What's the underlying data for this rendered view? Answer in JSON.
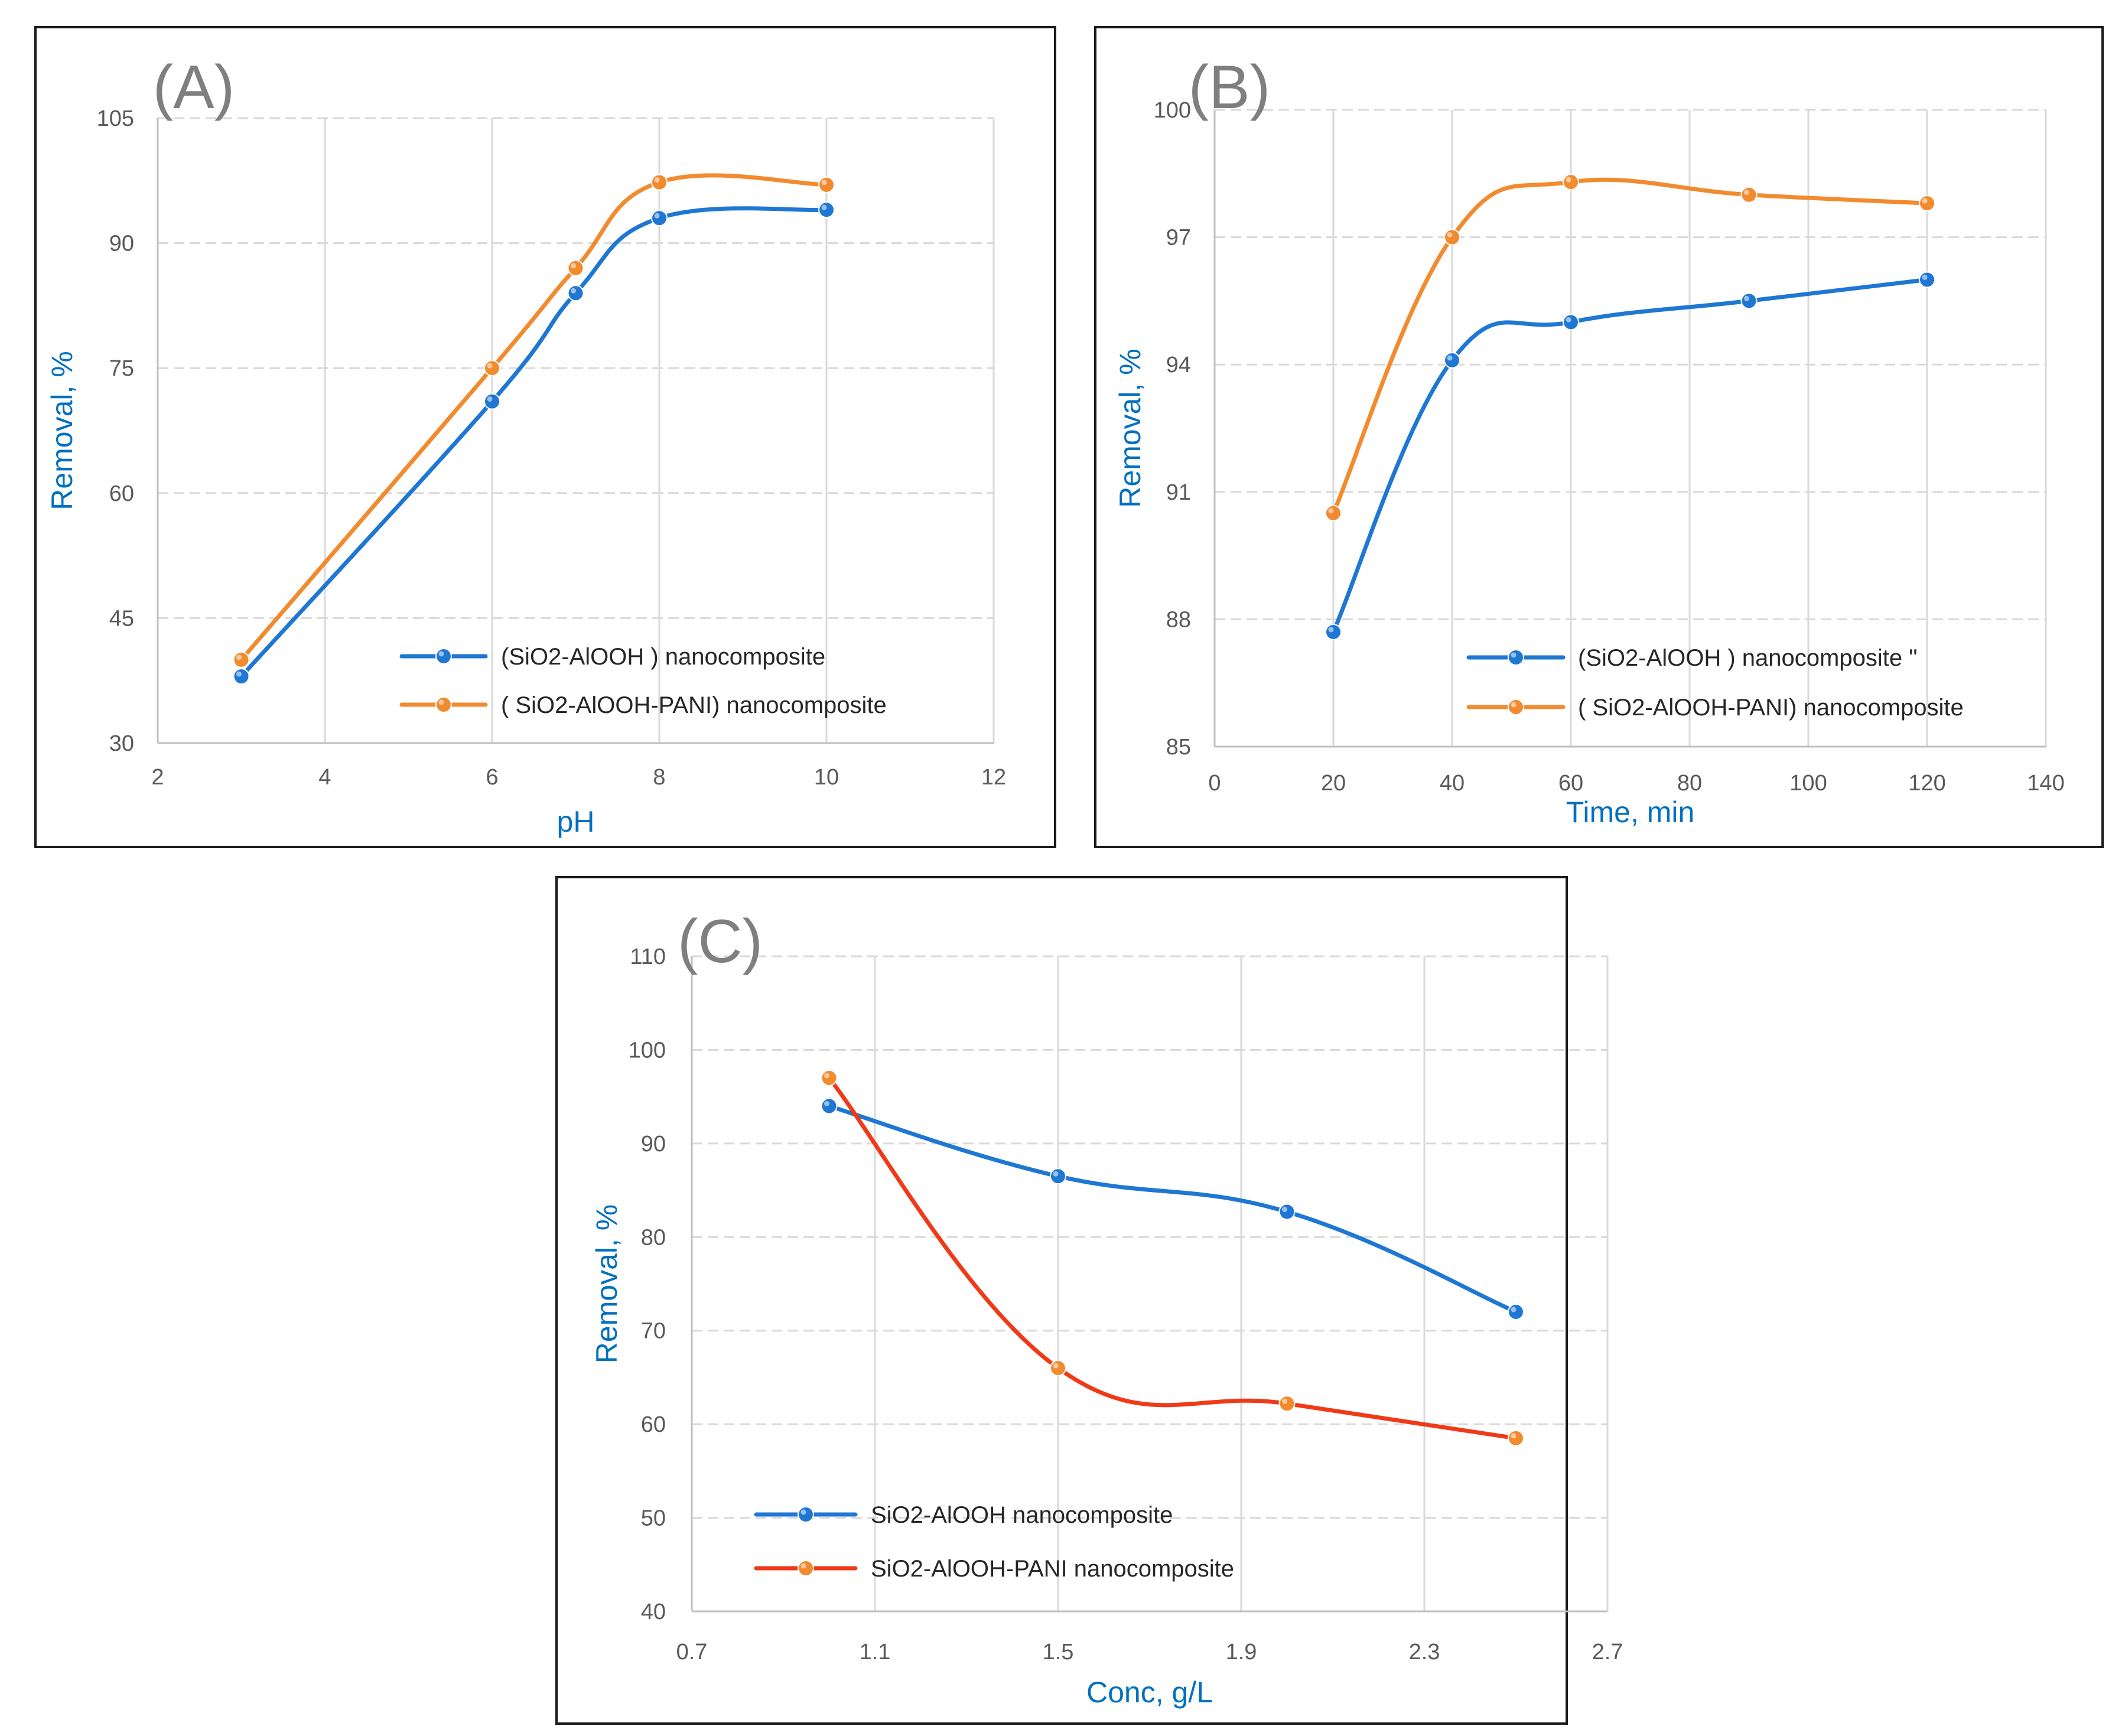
{
  "colors": {
    "blue": "#1f77d4",
    "orange": "#f28a2e",
    "red": "#f03a17",
    "axis_title": "#0070c0",
    "label": "#7f7f7f"
  },
  "chart_data": [
    {
      "id": "A",
      "type": "line",
      "panel_label": "(A)",
      "xlabel": "pH",
      "ylabel": "Removal, %",
      "xlim": [
        2,
        12
      ],
      "ylim": [
        30,
        105
      ],
      "xticks": [
        2,
        4,
        6,
        8,
        10,
        12
      ],
      "yticks": [
        30,
        45,
        60,
        75,
        90,
        105
      ],
      "legend_position": "bottom-right",
      "series": [
        {
          "name": "(SiO2-AlOOH ) nanocomposite",
          "color": "#1f77d4",
          "x": [
            3,
            6,
            7,
            8,
            10
          ],
          "values": [
            38,
            71,
            84,
            93,
            94
          ]
        },
        {
          "name": "( SiO2-AlOOH-PANI) nanocomposite",
          "color": "#f28a2e",
          "x": [
            3,
            6,
            7,
            8,
            10
          ],
          "values": [
            40,
            75,
            87,
            97.3,
            97
          ]
        }
      ]
    },
    {
      "id": "B",
      "type": "line",
      "panel_label": "(B)",
      "xlabel": "Time, min",
      "ylabel": "Removal, %",
      "xlim": [
        0,
        140
      ],
      "ylim": [
        85,
        100
      ],
      "xticks": [
        0,
        20,
        40,
        60,
        80,
        100,
        120,
        140
      ],
      "yticks": [
        85,
        88,
        91,
        94,
        97,
        100
      ],
      "legend_position": "bottom-right",
      "series": [
        {
          "name": "(SiO2-AlOOH )  nanocomposite \"",
          "color": "#1f77d4",
          "x": [
            20,
            40,
            60,
            90,
            120
          ],
          "values": [
            87.7,
            94.1,
            95,
            95.5,
            96
          ]
        },
        {
          "name": "( SiO2-AlOOH-PANI) nanocomposite",
          "color": "#f28a2e",
          "x": [
            20,
            40,
            60,
            90,
            120
          ],
          "values": [
            90.5,
            97,
            98.3,
            98,
            97.8
          ]
        }
      ]
    },
    {
      "id": "C",
      "type": "line",
      "panel_label": "(C)",
      "xlabel": "Conc, g/L",
      "ylabel": "Removal, %",
      "xlim": [
        0.7,
        2.7
      ],
      "ylim": [
        40,
        110
      ],
      "xticks": [
        0.7,
        1.1,
        1.5,
        1.9,
        2.3,
        2.7
      ],
      "yticks": [
        40,
        50,
        60,
        70,
        80,
        90,
        100,
        110
      ],
      "legend_position": "bottom-left",
      "series": [
        {
          "name": "SiO2-AlOOH nanocomposite",
          "color": "#1f77d4",
          "x": [
            1.0,
            1.5,
            2.0,
            2.5
          ],
          "values": [
            94,
            86.5,
            82.7,
            72
          ]
        },
        {
          "name": "SiO2-AlOOH-PANI nanocomposite",
          "color": "#f03a17",
          "marker_color": "#f28a2e",
          "x": [
            1.0,
            1.5,
            2.0,
            2.5
          ],
          "values": [
            97,
            66,
            62.2,
            58.5
          ]
        }
      ]
    }
  ]
}
